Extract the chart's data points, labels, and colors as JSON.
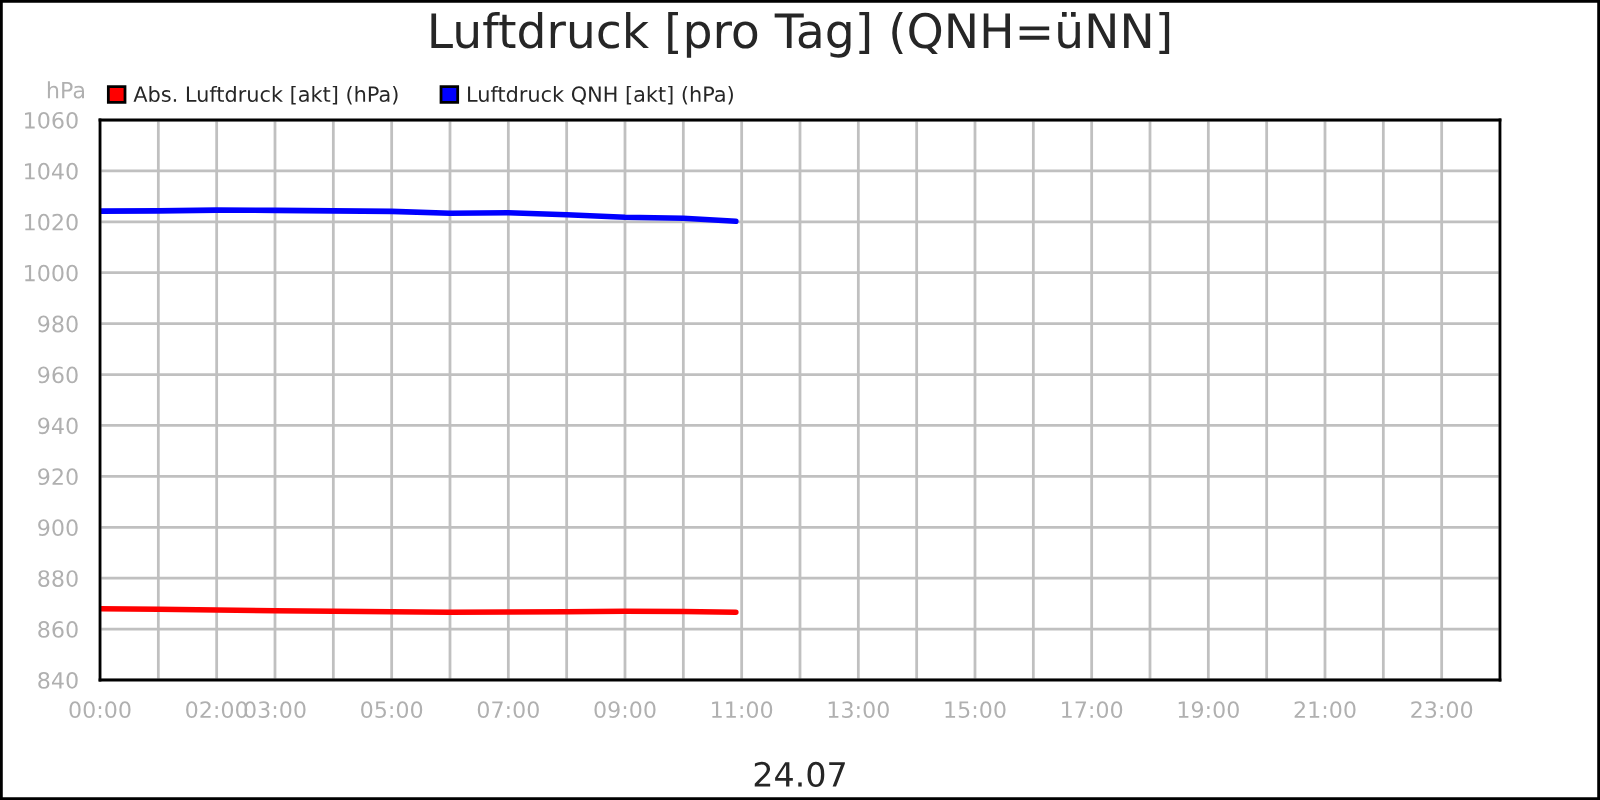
{
  "chart_data": {
    "type": "line",
    "title": "Luftdruck [pro Tag] (QNH=üNN]",
    "xlabel": "24.07",
    "ylabel": "hPa",
    "x": [
      0,
      1,
      2,
      3,
      4,
      5,
      6,
      7,
      8,
      9,
      10,
      10.9
    ],
    "series": [
      {
        "name": "Abs. Luftdruck [akt] (hPa)",
        "color": "#ff0000",
        "values": [
          868,
          867.8,
          867.5,
          867.2,
          867,
          866.8,
          866.6,
          866.7,
          866.8,
          867,
          866.9,
          866.6
        ]
      },
      {
        "name": "Luftdruck QNH [akt] (hPa)",
        "color": "#0000ff",
        "values": [
          1024.2,
          1024.3,
          1024.6,
          1024.5,
          1024.3,
          1024.1,
          1023.4,
          1023.6,
          1022.8,
          1021.8,
          1021.4,
          1020.2
        ]
      }
    ],
    "xlim": [
      0,
      24
    ],
    "xticks": [
      {
        "value": 0,
        "label": "00:00"
      },
      {
        "value": 1,
        "label": null
      },
      {
        "value": 2,
        "label": "02:00"
      },
      {
        "value": 3,
        "label": "03:00"
      },
      {
        "value": 4,
        "label": null
      },
      {
        "value": 5,
        "label": "05:00"
      },
      {
        "value": 6,
        "label": null
      },
      {
        "value": 7,
        "label": "07:00"
      },
      {
        "value": 8,
        "label": null
      },
      {
        "value": 9,
        "label": "09:00"
      },
      {
        "value": 10,
        "label": null
      },
      {
        "value": 11,
        "label": "11:00"
      },
      {
        "value": 12,
        "label": null
      },
      {
        "value": 13,
        "label": "13:00"
      },
      {
        "value": 14,
        "label": null
      },
      {
        "value": 15,
        "label": "15:00"
      },
      {
        "value": 16,
        "label": null
      },
      {
        "value": 17,
        "label": "17:00"
      },
      {
        "value": 18,
        "label": null
      },
      {
        "value": 19,
        "label": "19:00"
      },
      {
        "value": 20,
        "label": null
      },
      {
        "value": 21,
        "label": "21:00"
      },
      {
        "value": 22,
        "label": null
      },
      {
        "value": 23,
        "label": "23:00"
      },
      {
        "value": 24,
        "label": null
      }
    ],
    "ylim": [
      840,
      1060
    ],
    "yticks": [
      840,
      860,
      880,
      900,
      920,
      940,
      960,
      980,
      1000,
      1020,
      1040,
      1060
    ],
    "grid": true,
    "legend": "top left",
    "line_style": "solid",
    "marker": "none"
  }
}
